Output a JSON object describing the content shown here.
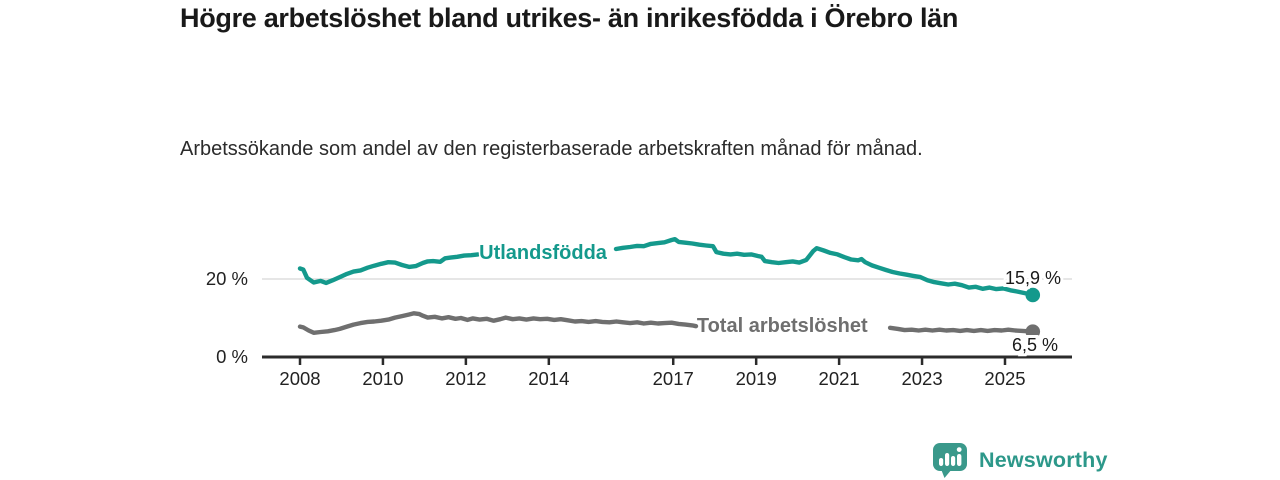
{
  "header": {
    "title": "Högre arbetslöshet bland utrikes- än inrikesfödda i Örebro län",
    "subtitle": "Arbetssökande som andel av den registerbaserade arbetskraften månad för månad."
  },
  "footer": {
    "brand": "Newsworthy"
  },
  "colors": {
    "teal": "#14998c",
    "gray": "#6f6f6f",
    "axis": "#2b2b2b",
    "grid": "#d8d8d8",
    "text": "#1a1a1a",
    "logo_mark": "#3a998b",
    "logo_text": "#2d988a"
  },
  "chart_data": {
    "type": "line",
    "title": "Högre arbetslöshet bland utrikes- än inrikesfödda i Örebro län",
    "subtitle": "Arbetssökande som andel av den registerbaserade arbetskraften månad för månad.",
    "unit": "%",
    "legend_position": "inline-labels",
    "grid": "y-only",
    "x_axis": {
      "ticks": [
        2008,
        2010,
        2012,
        2014,
        2017,
        2019,
        2021,
        2023,
        2025
      ],
      "range_years": [
        2007.1,
        2026.6
      ]
    },
    "y_axis": {
      "ticks": [
        {
          "value": 0,
          "label": "0 %"
        },
        {
          "value": 20,
          "label": "20 %"
        }
      ],
      "range": [
        0,
        32.5
      ],
      "gridlines": [
        20
      ]
    },
    "series": [
      {
        "name": "Utlandsfödda",
        "color": "#14998c",
        "label_pos": [
          2012.32,
          25.1
        ],
        "end_label": "15,9 %",
        "end_label_pos": [
          2025.0,
          18.7
        ],
        "end_dot": [
          2025.67,
          15.9
        ],
        "segments": [
          [
            [
              2008.0,
              22.7
            ],
            [
              2008.08,
              22.4
            ],
            [
              2008.17,
              20.3
            ],
            [
              2008.33,
              19.1
            ],
            [
              2008.5,
              19.5
            ],
            [
              2008.63,
              19.0
            ],
            [
              2008.79,
              19.7
            ],
            [
              2008.96,
              20.5
            ],
            [
              2009.13,
              21.3
            ],
            [
              2009.29,
              21.9
            ],
            [
              2009.46,
              22.2
            ],
            [
              2009.63,
              22.9
            ],
            [
              2009.79,
              23.4
            ],
            [
              2009.96,
              23.9
            ],
            [
              2010.13,
              24.3
            ],
            [
              2010.29,
              24.2
            ],
            [
              2010.46,
              23.6
            ],
            [
              2010.63,
              23.1
            ],
            [
              2010.79,
              23.3
            ],
            [
              2010.96,
              24.1
            ],
            [
              2011.08,
              24.5
            ],
            [
              2011.21,
              24.6
            ],
            [
              2011.38,
              24.4
            ],
            [
              2011.5,
              25.3
            ],
            [
              2011.63,
              25.5
            ],
            [
              2011.79,
              25.7
            ],
            [
              2011.96,
              26.0
            ],
            [
              2012.13,
              26.1
            ],
            [
              2012.29,
              26.3
            ]
          ],
          [
            [
              2015.62,
              27.7
            ],
            [
              2015.79,
              28.0
            ],
            [
              2015.96,
              28.2
            ],
            [
              2016.13,
              28.5
            ],
            [
              2016.29,
              28.4
            ],
            [
              2016.46,
              29.0
            ],
            [
              2016.63,
              29.2
            ],
            [
              2016.79,
              29.4
            ],
            [
              2016.96,
              30.0
            ],
            [
              2017.04,
              30.2
            ],
            [
              2017.13,
              29.5
            ],
            [
              2017.29,
              29.3
            ],
            [
              2017.46,
              29.1
            ],
            [
              2017.63,
              28.8
            ],
            [
              2017.79,
              28.6
            ],
            [
              2017.96,
              28.4
            ],
            [
              2018.04,
              26.9
            ],
            [
              2018.21,
              26.5
            ],
            [
              2018.38,
              26.3
            ],
            [
              2018.54,
              26.5
            ],
            [
              2018.71,
              26.2
            ],
            [
              2018.88,
              26.3
            ],
            [
              2019.04,
              25.9
            ],
            [
              2019.13,
              25.7
            ],
            [
              2019.21,
              24.6
            ],
            [
              2019.38,
              24.3
            ],
            [
              2019.54,
              24.1
            ],
            [
              2019.71,
              24.3
            ],
            [
              2019.88,
              24.5
            ],
            [
              2020.04,
              24.2
            ],
            [
              2020.21,
              24.9
            ],
            [
              2020.38,
              27.2
            ],
            [
              2020.46,
              27.9
            ],
            [
              2020.63,
              27.3
            ],
            [
              2020.79,
              26.7
            ],
            [
              2020.96,
              26.3
            ],
            [
              2021.13,
              25.6
            ],
            [
              2021.29,
              25.0
            ],
            [
              2021.46,
              24.8
            ],
            [
              2021.54,
              25.1
            ],
            [
              2021.63,
              24.3
            ],
            [
              2021.79,
              23.5
            ],
            [
              2021.96,
              22.9
            ],
            [
              2022.13,
              22.3
            ],
            [
              2022.29,
              21.8
            ],
            [
              2022.46,
              21.4
            ],
            [
              2022.63,
              21.1
            ],
            [
              2022.79,
              20.8
            ],
            [
              2022.96,
              20.5
            ],
            [
              2023.13,
              19.7
            ],
            [
              2023.29,
              19.2
            ],
            [
              2023.46,
              18.9
            ],
            [
              2023.63,
              18.6
            ],
            [
              2023.79,
              18.8
            ],
            [
              2023.96,
              18.4
            ],
            [
              2024.13,
              17.8
            ],
            [
              2024.29,
              18.0
            ],
            [
              2024.46,
              17.5
            ],
            [
              2024.63,
              17.8
            ],
            [
              2024.79,
              17.4
            ],
            [
              2024.96,
              17.6
            ],
            [
              2025.13,
              17.1
            ],
            [
              2025.29,
              16.8
            ],
            [
              2025.46,
              16.4
            ],
            [
              2025.67,
              15.9
            ]
          ]
        ]
      },
      {
        "name": "Total arbetslöshet",
        "color": "#6f6f6f",
        "label_pos": [
          2017.57,
          6.4
        ],
        "end_label": "6,5 %",
        "end_label_pos": [
          2025.17,
          1.5
        ],
        "end_dot": [
          2025.67,
          6.5
        ],
        "segments": [
          [
            [
              2008.0,
              7.8
            ],
            [
              2008.08,
              7.6
            ],
            [
              2008.21,
              6.8
            ],
            [
              2008.33,
              6.2
            ],
            [
              2008.5,
              6.4
            ],
            [
              2008.67,
              6.6
            ],
            [
              2008.83,
              6.9
            ],
            [
              2008.96,
              7.2
            ],
            [
              2009.13,
              7.8
            ],
            [
              2009.29,
              8.3
            ],
            [
              2009.46,
              8.7
            ],
            [
              2009.63,
              9.0
            ],
            [
              2009.79,
              9.1
            ],
            [
              2009.96,
              9.3
            ],
            [
              2010.13,
              9.6
            ],
            [
              2010.29,
              10.1
            ],
            [
              2010.46,
              10.5
            ],
            [
              2010.63,
              10.9
            ],
            [
              2010.75,
              11.2
            ],
            [
              2010.88,
              11.0
            ],
            [
              2010.96,
              10.6
            ],
            [
              2011.08,
              10.1
            ],
            [
              2011.25,
              10.3
            ],
            [
              2011.42,
              9.9
            ],
            [
              2011.58,
              10.2
            ],
            [
              2011.75,
              9.8
            ],
            [
              2011.88,
              10.0
            ],
            [
              2012.04,
              9.5
            ],
            [
              2012.17,
              9.9
            ],
            [
              2012.33,
              9.6
            ],
            [
              2012.5,
              9.8
            ],
            [
              2012.67,
              9.3
            ],
            [
              2012.83,
              9.7
            ],
            [
              2012.96,
              10.1
            ],
            [
              2013.13,
              9.7
            ],
            [
              2013.29,
              9.9
            ],
            [
              2013.46,
              9.6
            ],
            [
              2013.63,
              9.9
            ],
            [
              2013.79,
              9.7
            ],
            [
              2013.96,
              9.8
            ],
            [
              2014.13,
              9.5
            ],
            [
              2014.29,
              9.7
            ],
            [
              2014.46,
              9.4
            ],
            [
              2014.63,
              9.1
            ],
            [
              2014.79,
              9.2
            ],
            [
              2014.96,
              9.0
            ],
            [
              2015.13,
              9.2
            ],
            [
              2015.29,
              9.0
            ],
            [
              2015.46,
              8.9
            ],
            [
              2015.63,
              9.1
            ],
            [
              2015.79,
              8.9
            ],
            [
              2015.96,
              8.7
            ],
            [
              2016.13,
              8.9
            ],
            [
              2016.29,
              8.6
            ],
            [
              2016.46,
              8.8
            ],
            [
              2016.63,
              8.6
            ],
            [
              2016.79,
              8.7
            ],
            [
              2016.96,
              8.8
            ],
            [
              2017.13,
              8.5
            ],
            [
              2017.29,
              8.3
            ],
            [
              2017.46,
              8.1
            ],
            [
              2017.55,
              7.9
            ]
          ],
          [
            [
              2022.23,
              7.5
            ],
            [
              2022.42,
              7.2
            ],
            [
              2022.58,
              6.9
            ],
            [
              2022.75,
              7.0
            ],
            [
              2022.92,
              6.8
            ],
            [
              2023.08,
              7.0
            ],
            [
              2023.25,
              6.8
            ],
            [
              2023.42,
              7.0
            ],
            [
              2023.58,
              6.8
            ],
            [
              2023.75,
              6.9
            ],
            [
              2023.92,
              6.7
            ],
            [
              2024.08,
              6.9
            ],
            [
              2024.25,
              6.7
            ],
            [
              2024.42,
              6.9
            ],
            [
              2024.58,
              6.7
            ],
            [
              2024.75,
              6.9
            ],
            [
              2024.92,
              6.8
            ],
            [
              2025.08,
              7.0
            ],
            [
              2025.25,
              6.8
            ],
            [
              2025.42,
              6.7
            ],
            [
              2025.67,
              6.5
            ]
          ]
        ]
      }
    ]
  }
}
